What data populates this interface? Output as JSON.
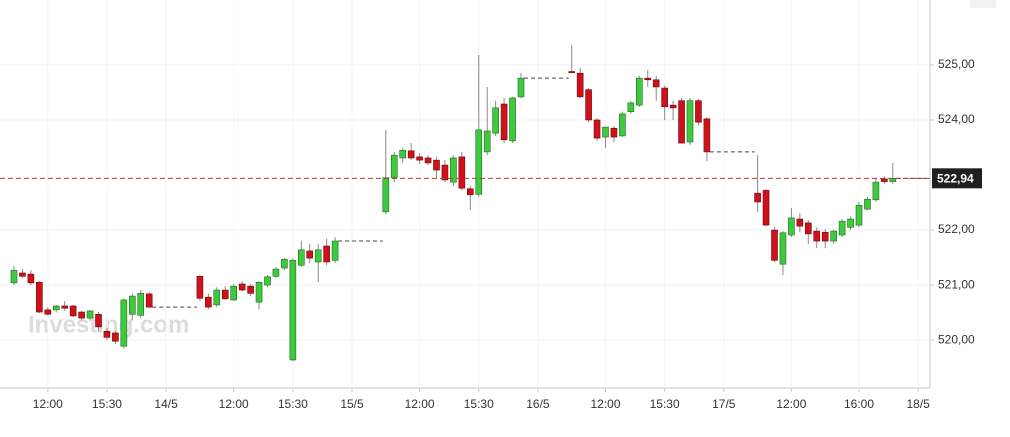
{
  "chart_data": {
    "type": "candlestick",
    "watermark": "Investing.com",
    "categories": [
      null,
      null,
      null,
      null,
      "12:00",
      null,
      null,
      null,
      null,
      null,
      null,
      "15:30",
      null,
      null,
      null,
      null,
      null,
      null,
      "14/5",
      null,
      null,
      null,
      null,
      null,
      null,
      null,
      "12:00",
      null,
      null,
      null,
      null,
      null,
      null,
      "15:30",
      null,
      null,
      null,
      null,
      null,
      null,
      "15/5",
      null,
      null,
      null,
      null,
      null,
      null,
      null,
      "12:00",
      null,
      null,
      null,
      null,
      null,
      null,
      "15:30",
      null,
      null,
      null,
      null,
      null,
      null,
      "16/5",
      null,
      null,
      null,
      null,
      null,
      null,
      null,
      "12:00",
      null,
      null,
      null,
      null,
      null,
      null,
      "15:30",
      null,
      null,
      null,
      null,
      null,
      null,
      "17/5",
      null,
      null,
      null,
      null,
      null,
      null,
      null,
      "12:00",
      null,
      null,
      null,
      null,
      null,
      null,
      null,
      "16:00",
      null,
      null,
      null,
      null,
      null,
      null,
      "18/5",
      null
    ],
    "open": [
      521.04,
      521.22,
      521.2,
      521.05,
      520.55,
      520.55,
      520.62,
      520.62,
      520.51,
      520.4,
      520.47,
      520.16,
      520.13,
      519.89,
      520.47,
      520.45,
      520.84,
      null,
      null,
      null,
      null,
      null,
      521.16,
      520.78,
      520.64,
      520.91,
      520.73,
      521.02,
      520.98,
      520.69,
      521.0,
      521.16,
      521.31,
      519.64,
      521.36,
      521.62,
      521.42,
      521.71,
      521.45,
      null,
      null,
      null,
      null,
      null,
      522.33,
      522.95,
      523.31,
      523.44,
      523.33,
      523.31,
      523.27,
      523.18,
      522.87,
      523.33,
      522.75,
      522.65,
      523.42,
      523.76,
      524.29,
      523.62,
      524.42,
      null,
      null,
      null,
      null,
      null,
      524.88,
      524.85,
      524.55,
      524.0,
      523.69,
      523.85,
      523.71,
      524.15,
      524.27,
      524.76,
      524.73,
      524.58,
      524.27,
      524.35,
      523.6,
      524.35,
      524.02,
      null,
      null,
      null,
      null,
      null,
      522.67,
      522.72,
      522.0,
      521.38,
      521.91,
      522.2,
      522.13,
      521.98,
      521.96,
      521.8,
      521.91,
      522.05,
      522.09,
      522.38,
      522.55,
      522.93,
      522.88,
      null,
      null,
      null,
      null
    ],
    "high": [
      521.35,
      521.29,
      521.27,
      521.07,
      520.6,
      520.64,
      520.71,
      520.64,
      520.53,
      520.55,
      520.51,
      520.22,
      520.16,
      520.76,
      520.84,
      520.91,
      520.87,
      null,
      null,
      null,
      null,
      null,
      521.18,
      520.84,
      520.96,
      520.98,
      521.02,
      521.07,
      521.02,
      521.07,
      521.18,
      521.33,
      521.49,
      521.49,
      521.8,
      521.75,
      521.75,
      521.84,
      521.87,
      null,
      null,
      null,
      null,
      null,
      523.82,
      523.42,
      523.49,
      523.58,
      523.4,
      523.36,
      523.33,
      523.27,
      523.36,
      523.42,
      522.8,
      525.18,
      524.6,
      524.35,
      524.4,
      524.42,
      524.85,
      null,
      null,
      null,
      null,
      null,
      525.36,
      524.95,
      524.58,
      524.04,
      523.87,
      523.89,
      524.15,
      524.35,
      524.8,
      524.91,
      524.8,
      524.62,
      524.35,
      524.4,
      524.4,
      524.38,
      524.05,
      null,
      null,
      null,
      null,
      null,
      523.36,
      522.75,
      522.05,
      521.98,
      522.4,
      522.31,
      522.18,
      522.05,
      522.02,
      522.0,
      522.2,
      522.25,
      522.51,
      522.6,
      522.95,
      522.98,
      523.22,
      null,
      null,
      null,
      null
    ],
    "low": [
      521.0,
      521.13,
      521.0,
      520.49,
      520.45,
      520.5,
      520.53,
      520.42,
      520.36,
      520.36,
      520.16,
      520.0,
      519.93,
      519.85,
      520.36,
      520.4,
      520.58,
      null,
      null,
      null,
      null,
      null,
      520.71,
      520.56,
      520.6,
      520.73,
      520.71,
      520.89,
      520.8,
      520.56,
      520.96,
      521.13,
      521.27,
      519.62,
      521.33,
      521.4,
      521.05,
      521.36,
      521.4,
      null,
      null,
      null,
      null,
      null,
      522.29,
      522.87,
      523.22,
      523.27,
      523.2,
      523.18,
      522.95,
      522.87,
      522.8,
      522.72,
      522.36,
      522.6,
      523.36,
      523.71,
      523.58,
      523.58,
      524.4,
      null,
      null,
      null,
      null,
      null,
      524.85,
      524.4,
      523.96,
      523.62,
      523.49,
      523.6,
      523.69,
      524.11,
      524.24,
      524.6,
      524.35,
      524.0,
      524.0,
      523.58,
      523.55,
      523.9,
      523.25,
      null,
      null,
      null,
      null,
      null,
      522.33,
      522.07,
      521.42,
      521.18,
      521.87,
      521.96,
      521.75,
      521.67,
      521.67,
      521.75,
      521.87,
      522.0,
      522.05,
      522.36,
      522.51,
      522.84,
      522.84,
      null,
      null,
      null,
      null
    ],
    "close": [
      521.27,
      521.16,
      521.04,
      520.51,
      520.47,
      520.62,
      520.58,
      520.44,
      520.4,
      520.53,
      520.24,
      520.05,
      519.98,
      520.73,
      520.8,
      520.85,
      520.6,
      null,
      null,
      null,
      null,
      null,
      520.76,
      520.6,
      520.91,
      520.75,
      520.98,
      520.91,
      520.85,
      521.05,
      521.15,
      521.29,
      521.47,
      521.45,
      521.64,
      521.49,
      521.64,
      521.42,
      521.8,
      null,
      null,
      null,
      null,
      null,
      522.95,
      523.36,
      523.45,
      523.31,
      523.27,
      523.22,
      523.09,
      522.91,
      523.31,
      522.76,
      522.64,
      523.82,
      523.8,
      524.22,
      523.64,
      524.4,
      524.76,
      null,
      null,
      null,
      null,
      null,
      524.86,
      524.42,
      524.0,
      523.67,
      523.87,
      523.69,
      524.11,
      524.31,
      524.76,
      524.73,
      524.6,
      524.24,
      524.22,
      523.58,
      524.35,
      523.96,
      523.42,
      null,
      null,
      null,
      null,
      null,
      522.51,
      522.09,
      521.45,
      521.95,
      522.22,
      522.07,
      521.93,
      521.8,
      521.8,
      521.98,
      522.16,
      522.2,
      522.45,
      522.56,
      522.87,
      522.88,
      522.94,
      null,
      null,
      null,
      null
    ],
    "up_color": "#3fc93f",
    "down_color": "#d0111c",
    "ylim": [
      519.13,
      526.18
    ],
    "yticks": [
      {
        "value": 520,
        "label": "520,00"
      },
      {
        "value": 521,
        "label": "521,00"
      },
      {
        "value": 522,
        "label": "522,00"
      },
      {
        "value": 524,
        "label": "524,00"
      },
      {
        "value": 525,
        "label": "525,00"
      }
    ],
    "current_price": {
      "value": 522.94,
      "label": "522,94"
    },
    "grid": true
  }
}
